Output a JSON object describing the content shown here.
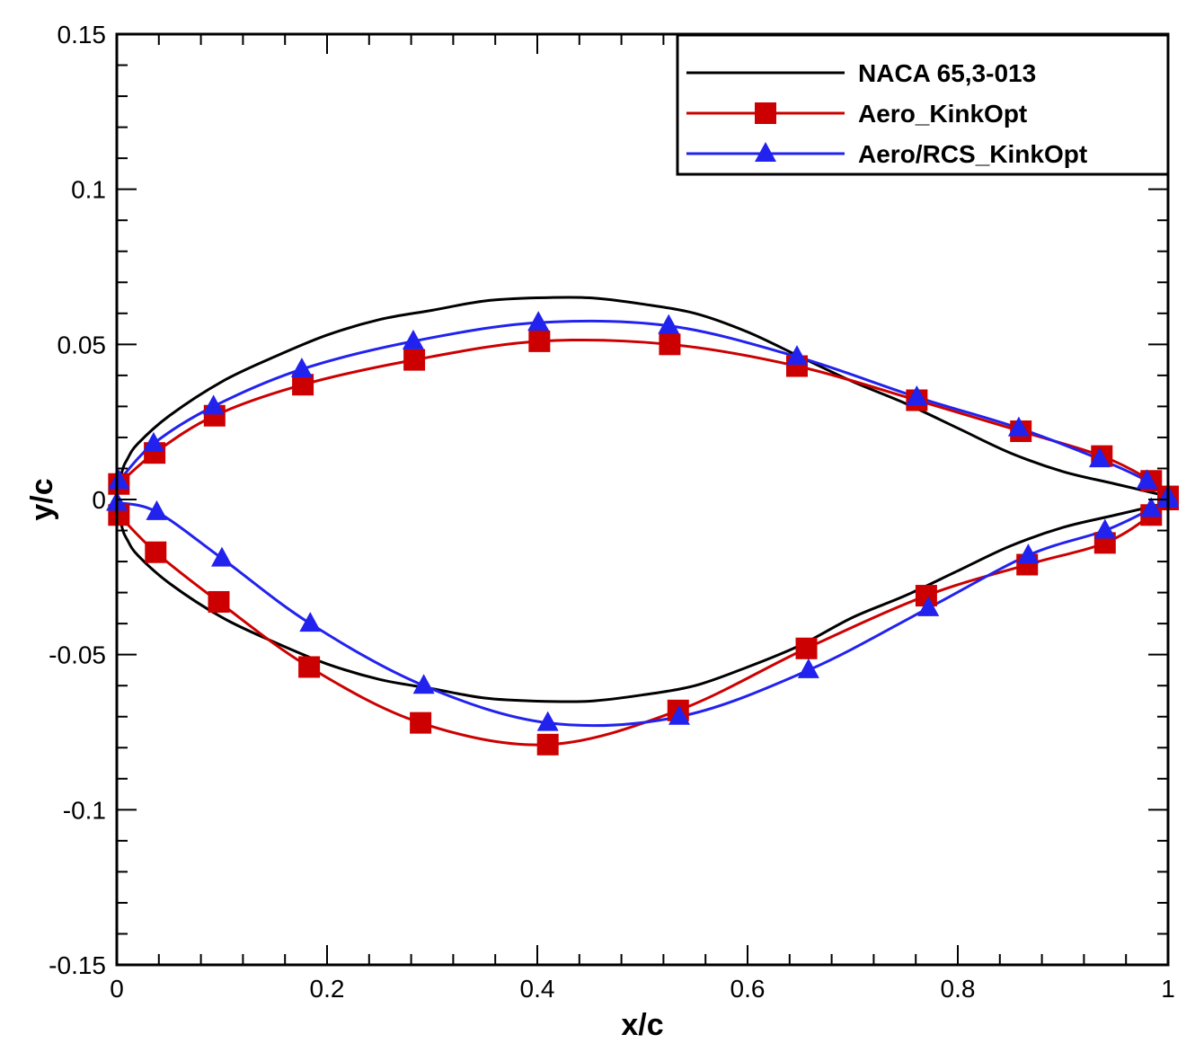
{
  "chart_data": {
    "type": "line",
    "title": "",
    "xlabel": "x/c",
    "ylabel": "y/c",
    "xlim": [
      0,
      1
    ],
    "ylim": [
      -0.15,
      0.15
    ],
    "xticks": [
      0,
      0.2,
      0.4,
      0.6,
      0.8,
      1
    ],
    "xtick_labels": [
      "0",
      "0.2",
      "0.4",
      "0.6",
      "0.8",
      "1"
    ],
    "yticks": [
      -0.15,
      -0.1,
      -0.05,
      0,
      0.05,
      0.1,
      0.15
    ],
    "ytick_labels": [
      "-0.15",
      "-0.1",
      "-0.05",
      "0",
      "0.05",
      "0.1",
      "0.15"
    ],
    "grid": false,
    "legend_position": "top-right",
    "series": [
      {
        "name": "NACA 65,3-013",
        "color": "#000000",
        "marker": "none",
        "upper": [
          [
            0,
            0
          ],
          [
            0.005,
            0.009
          ],
          [
            0.01,
            0.013
          ],
          [
            0.02,
            0.018
          ],
          [
            0.05,
            0.027
          ],
          [
            0.1,
            0.038
          ],
          [
            0.15,
            0.046
          ],
          [
            0.2,
            0.053
          ],
          [
            0.25,
            0.058
          ],
          [
            0.3,
            0.061
          ],
          [
            0.35,
            0.064
          ],
          [
            0.4,
            0.065
          ],
          [
            0.45,
            0.065
          ],
          [
            0.5,
            0.063
          ],
          [
            0.55,
            0.06
          ],
          [
            0.6,
            0.054
          ],
          [
            0.65,
            0.046
          ],
          [
            0.7,
            0.038
          ],
          [
            0.75,
            0.031
          ],
          [
            0.8,
            0.023
          ],
          [
            0.85,
            0.015
          ],
          [
            0.9,
            0.009
          ],
          [
            0.95,
            0.005
          ],
          [
            1,
            0.001
          ]
        ],
        "lower": [
          [
            0,
            0
          ],
          [
            0.005,
            -0.009
          ],
          [
            0.01,
            -0.013
          ],
          [
            0.02,
            -0.018
          ],
          [
            0.05,
            -0.027
          ],
          [
            0.1,
            -0.038
          ],
          [
            0.15,
            -0.046
          ],
          [
            0.2,
            -0.053
          ],
          [
            0.25,
            -0.058
          ],
          [
            0.3,
            -0.061
          ],
          [
            0.35,
            -0.064
          ],
          [
            0.4,
            -0.065
          ],
          [
            0.45,
            -0.065
          ],
          [
            0.5,
            -0.063
          ],
          [
            0.55,
            -0.06
          ],
          [
            0.6,
            -0.054
          ],
          [
            0.65,
            -0.047
          ],
          [
            0.7,
            -0.038
          ],
          [
            0.75,
            -0.031
          ],
          [
            0.8,
            -0.023
          ],
          [
            0.85,
            -0.015
          ],
          [
            0.9,
            -0.009
          ],
          [
            0.95,
            -0.005
          ],
          [
            1,
            -0.001
          ]
        ]
      },
      {
        "name": "Aero_KinkOpt",
        "color": "#cc0000",
        "marker": "square",
        "upper": [
          [
            0.002,
            0.005
          ],
          [
            0.036,
            0.015
          ],
          [
            0.093,
            0.027
          ],
          [
            0.177,
            0.037
          ],
          [
            0.283,
            0.045
          ],
          [
            0.402,
            0.051
          ],
          [
            0.526,
            0.05
          ],
          [
            0.647,
            0.043
          ],
          [
            0.761,
            0.032
          ],
          [
            0.86,
            0.022
          ],
          [
            0.937,
            0.014
          ],
          [
            0.984,
            0.006
          ],
          [
            1,
            0.001
          ]
        ],
        "lower": [
          [
            0.002,
            -0.005
          ],
          [
            0.037,
            -0.017
          ],
          [
            0.097,
            -0.033
          ],
          [
            0.183,
            -0.054
          ],
          [
            0.289,
            -0.072
          ],
          [
            0.41,
            -0.079
          ],
          [
            0.534,
            -0.068
          ],
          [
            0.656,
            -0.048
          ],
          [
            0.77,
            -0.031
          ],
          [
            0.866,
            -0.021
          ],
          [
            0.94,
            -0.014
          ],
          [
            0.984,
            -0.005
          ],
          [
            1,
            0
          ]
        ]
      },
      {
        "name": "Aero/RCS_KinkOpt",
        "color": "#2222ee",
        "marker": "triangle",
        "upper": [
          [
            0.002,
            0.006
          ],
          [
            0.035,
            0.018
          ],
          [
            0.092,
            0.03
          ],
          [
            0.176,
            0.042
          ],
          [
            0.282,
            0.051
          ],
          [
            0.401,
            0.057
          ],
          [
            0.525,
            0.056
          ],
          [
            0.647,
            0.046
          ],
          [
            0.761,
            0.033
          ],
          [
            0.858,
            0.023
          ],
          [
            0.935,
            0.013
          ],
          [
            0.98,
            0.006
          ],
          [
            1,
            0.001
          ]
        ],
        "lower": [
          [
            0,
            -0.001
          ],
          [
            0.038,
            -0.004
          ],
          [
            0.1,
            -0.019
          ],
          [
            0.184,
            -0.04
          ],
          [
            0.292,
            -0.06
          ],
          [
            0.41,
            -0.072
          ],
          [
            0.535,
            -0.07
          ],
          [
            0.658,
            -0.055
          ],
          [
            0.772,
            -0.035
          ],
          [
            0.867,
            -0.018
          ],
          [
            0.94,
            -0.01
          ],
          [
            0.984,
            -0.003
          ],
          [
            1,
            0
          ]
        ]
      }
    ]
  }
}
